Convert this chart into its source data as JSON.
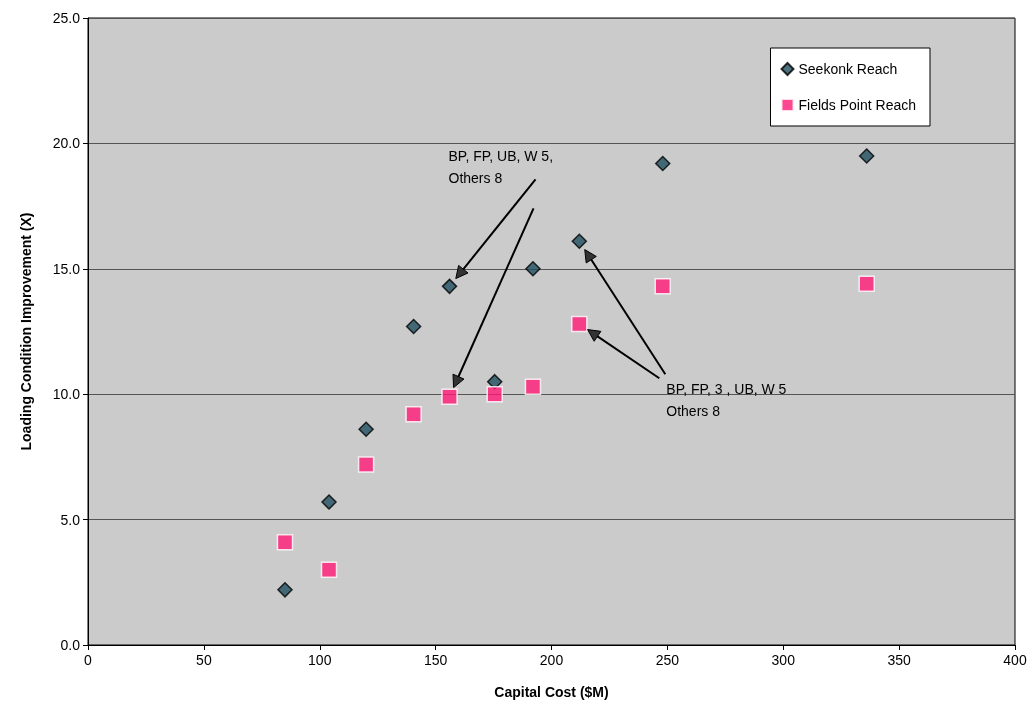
{
  "chart_data": {
    "type": "scatter",
    "xlabel": "Capital Cost ($M)",
    "ylabel": "Loading Condition Improvement (X)",
    "x": [
      85,
      104,
      120,
      140.5,
      156,
      175.5,
      192,
      212,
      248,
      336
    ],
    "series": [
      {
        "name": "Seekonk Reach",
        "color": "#1f4e5f",
        "marker": "diamond",
        "values": [
          2.2,
          5.7,
          8.6,
          12.7,
          14.3,
          10.5,
          15.0,
          16.1,
          19.2,
          19.5
        ]
      },
      {
        "name": "Fields Point Reach",
        "color": "#ff1a75",
        "marker": "square",
        "values": [
          4.1,
          3.0,
          7.2,
          9.2,
          9.9,
          10.0,
          10.3,
          12.8,
          14.3,
          14.4
        ]
      }
    ],
    "xlim": [
      0,
      400
    ],
    "xticks": [
      0,
      50,
      100,
      150,
      200,
      250,
      300,
      350,
      400
    ],
    "ylim": [
      0,
      25
    ],
    "yticks": [
      {
        "value": 0,
        "label": "0.0"
      },
      {
        "value": 5,
        "label": "5.0"
      },
      {
        "value": 10,
        "label": "10.0"
      },
      {
        "value": 15,
        "label": "15.0"
      },
      {
        "value": 20,
        "label": "20.0"
      },
      {
        "value": 25,
        "label": "25.0"
      }
    ],
    "grid": "y",
    "legend": "top right",
    "annotations": [
      "BP, FP, UB, W 5,\nOthers 8",
      "BP, FP, 3 , UB, W 5\nOthers 8"
    ]
  }
}
